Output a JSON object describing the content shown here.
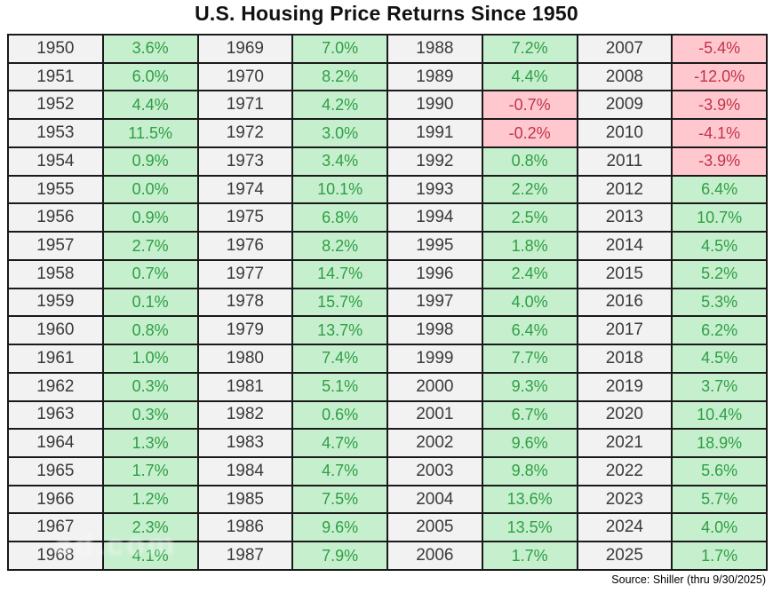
{
  "title": "U.S. Housing Price Returns Since 1950",
  "source_note": "Source: Shiller (thru 9/30/2025)",
  "watermark": "ad.com",
  "colors": {
    "positive_bg": "#c6efce",
    "positive_text": "#2f9e44",
    "negative_bg": "#ffc7ce",
    "negative_text": "#c0344a",
    "year_bg": "#f2f2f2",
    "year_text": "#3a3a3a",
    "border": "#1a1a1a"
  },
  "chart_data": {
    "type": "table",
    "title": "U.S. Housing Price Returns Since 1950",
    "source": "Source: Shiller (thru 9/30/2025)",
    "unit": "percent",
    "value_format": "one_decimal_percent",
    "layout": "4 year/value column pairs, 19 rows",
    "column_groups": [
      {
        "years": [
          1950,
          1951,
          1952,
          1953,
          1954,
          1955,
          1956,
          1957,
          1958,
          1959,
          1960,
          1961,
          1962,
          1963,
          1964,
          1965,
          1966,
          1967,
          1968
        ],
        "returns_pct": [
          3.6,
          6.0,
          4.4,
          11.5,
          0.9,
          0.0,
          0.9,
          2.7,
          0.7,
          0.1,
          0.8,
          1.0,
          0.3,
          0.3,
          1.3,
          1.7,
          1.2,
          2.3,
          4.1
        ]
      },
      {
        "years": [
          1969,
          1970,
          1971,
          1972,
          1973,
          1974,
          1975,
          1976,
          1977,
          1978,
          1979,
          1980,
          1981,
          1982,
          1983,
          1984,
          1985,
          1986,
          1987
        ],
        "returns_pct": [
          7.0,
          8.2,
          4.2,
          3.0,
          3.4,
          10.1,
          6.8,
          8.2,
          14.7,
          15.7,
          13.7,
          7.4,
          5.1,
          0.6,
          4.7,
          4.7,
          7.5,
          9.6,
          7.9
        ]
      },
      {
        "years": [
          1988,
          1989,
          1990,
          1991,
          1992,
          1993,
          1994,
          1995,
          1996,
          1997,
          1998,
          1999,
          2000,
          2001,
          2002,
          2003,
          2004,
          2005,
          2006
        ],
        "returns_pct": [
          7.2,
          4.4,
          -0.7,
          -0.2,
          0.8,
          2.2,
          2.5,
          1.8,
          2.4,
          4.0,
          6.4,
          7.7,
          9.3,
          6.7,
          9.6,
          9.8,
          13.6,
          13.5,
          1.7
        ]
      },
      {
        "years": [
          2007,
          2008,
          2009,
          2010,
          2011,
          2012,
          2013,
          2014,
          2015,
          2016,
          2017,
          2018,
          2019,
          2020,
          2021,
          2022,
          2023,
          2024,
          2025
        ],
        "returns_pct": [
          -5.4,
          -12.0,
          -3.9,
          -4.1,
          -3.9,
          6.4,
          10.7,
          4.5,
          5.2,
          5.3,
          6.2,
          4.5,
          3.7,
          10.4,
          18.9,
          5.6,
          5.7,
          4.0,
          1.7
        ]
      }
    ]
  }
}
